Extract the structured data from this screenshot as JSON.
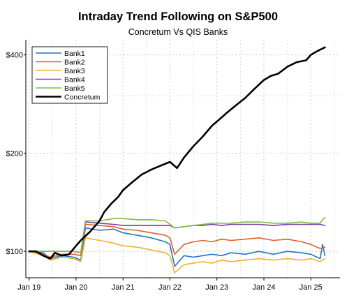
{
  "chart_data": {
    "type": "line",
    "title": "Intraday Trend Following on S&P500",
    "subtitle": "Concretum Vs QIS Banks",
    "xlabel": "",
    "ylabel": "",
    "y_scale": "log",
    "y_ticks": [
      100,
      200,
      400
    ],
    "y_tick_labels": [
      "$100",
      "$200",
      "$400"
    ],
    "ylim": [
      83,
      445
    ],
    "x_ticks": [
      2019.0,
      2020.0,
      2021.0,
      2022.0,
      2023.0,
      2024.0,
      2025.0
    ],
    "x_tick_labels": [
      "Jan 19",
      "Jan 20",
      "Jan 21",
      "Jan 22",
      "Jan 23",
      "Jan 24",
      "Jan 25"
    ],
    "xlim": [
      2018.93,
      2025.62
    ],
    "grid": true,
    "legend_position": "top-left",
    "series": [
      {
        "name": "Bank1",
        "color": "#1f77c4",
        "line_width": 1.6,
        "x": [
          2019.0,
          2019.3,
          2019.45,
          2019.7,
          2019.95,
          2020.1,
          2020.2,
          2020.5,
          2020.8,
          2021.0,
          2021.3,
          2021.6,
          2021.9,
          2022.0,
          2022.1,
          2022.3,
          2022.5,
          2022.7,
          2022.9,
          2023.1,
          2023.3,
          2023.6,
          2023.9,
          2024.2,
          2024.5,
          2024.8,
          2025.0,
          2025.2,
          2025.25,
          2025.3
        ],
        "y": [
          100,
          99,
          95,
          97,
          96,
          94,
          118,
          116,
          117,
          114,
          112,
          110,
          107,
          105,
          90,
          97,
          96,
          97,
          98,
          97,
          99,
          98,
          100,
          98,
          100,
          99,
          98,
          95,
          105,
          97
        ]
      },
      {
        "name": "Bank2",
        "color": "#e0602a",
        "line_width": 1.6,
        "x": [
          2019.0,
          2019.3,
          2019.45,
          2019.7,
          2019.95,
          2020.1,
          2020.2,
          2020.5,
          2020.8,
          2021.0,
          2021.3,
          2021.6,
          2021.9,
          2022.0,
          2022.1,
          2022.3,
          2022.5,
          2022.7,
          2022.9,
          2023.1,
          2023.3,
          2023.6,
          2023.9,
          2024.2,
          2024.5,
          2024.8,
          2025.0,
          2025.2,
          2025.3
        ],
        "y": [
          100,
          98,
          96,
          98,
          98,
          97,
          121,
          120,
          119,
          117,
          116,
          114,
          112,
          110,
          98,
          105,
          107,
          108,
          107,
          109,
          108,
          109,
          110,
          108,
          109,
          107,
          105,
          102,
          103
        ]
      },
      {
        "name": "Bank3",
        "color": "#f0b030",
        "line_width": 1.6,
        "x": [
          2019.0,
          2019.3,
          2019.45,
          2019.7,
          2019.95,
          2020.1,
          2020.2,
          2020.5,
          2020.8,
          2021.0,
          2021.3,
          2021.6,
          2021.9,
          2022.0,
          2022.1,
          2022.3,
          2022.5,
          2022.7,
          2022.9,
          2023.1,
          2023.3,
          2023.6,
          2023.9,
          2024.2,
          2024.5,
          2024.8,
          2025.0,
          2025.2,
          2025.3
        ],
        "y": [
          100,
          97,
          94,
          96,
          95,
          93,
          110,
          108,
          106,
          104,
          103,
          101,
          99,
          97,
          86,
          91,
          92,
          93,
          92,
          94,
          93,
          94,
          95,
          94,
          95,
          94,
          95,
          93,
          95
        ]
      },
      {
        "name": "Bank4",
        "color": "#7a3fa8",
        "line_width": 1.6,
        "x": [
          2019.0,
          2019.3,
          2019.45,
          2019.7,
          2019.95,
          2020.1,
          2020.2,
          2020.5,
          2020.8,
          2021.0,
          2021.3,
          2021.6,
          2021.9,
          2022.0,
          2022.1,
          2022.3,
          2022.5,
          2022.7,
          2022.9,
          2023.1,
          2023.3,
          2023.6,
          2023.9,
          2024.2,
          2024.5,
          2024.8,
          2025.0,
          2025.2,
          2025.3
        ],
        "y": [
          100,
          100,
          100,
          100,
          100,
          99,
          123,
          122,
          121,
          120,
          120,
          120,
          120,
          120,
          118,
          119,
          120,
          120,
          121,
          120,
          121,
          121,
          121,
          120,
          121,
          121,
          121,
          121,
          120
        ]
      },
      {
        "name": "Bank5",
        "color": "#7fbf3f",
        "line_width": 1.6,
        "x": [
          2019.0,
          2019.3,
          2019.45,
          2019.7,
          2019.95,
          2020.1,
          2020.2,
          2020.5,
          2020.8,
          2021.0,
          2021.3,
          2021.6,
          2021.9,
          2022.0,
          2022.1,
          2022.3,
          2022.5,
          2022.7,
          2022.9,
          2023.1,
          2023.3,
          2023.6,
          2023.9,
          2024.2,
          2024.5,
          2024.8,
          2025.0,
          2025.2,
          2025.25,
          2025.3
        ],
        "y": [
          100,
          100,
          100,
          100,
          100,
          99,
          124,
          124,
          126,
          126,
          125,
          125,
          124,
          121,
          118,
          119,
          120,
          121,
          122,
          122,
          122,
          123,
          123,
          122,
          122,
          123,
          122,
          122,
          125,
          127
        ]
      },
      {
        "name": "Concretum",
        "color": "#000000",
        "line_width": 2.6,
        "x": [
          2019.0,
          2019.15,
          2019.3,
          2019.45,
          2019.55,
          2019.7,
          2019.85,
          2020.0,
          2020.1,
          2020.3,
          2020.5,
          2020.6,
          2020.75,
          2020.9,
          2021.0,
          2021.2,
          2021.4,
          2021.6,
          2021.8,
          2022.0,
          2022.15,
          2022.3,
          2022.5,
          2022.7,
          2022.9,
          2023.0,
          2023.2,
          2023.4,
          2023.6,
          2023.8,
          2024.0,
          2024.15,
          2024.3,
          2024.5,
          2024.7,
          2024.9,
          2025.0,
          2025.1,
          2025.2,
          2025.3
        ],
        "y": [
          100,
          100,
          97,
          95,
          99,
          97,
          98,
          104,
          108,
          115,
          124,
          132,
          140,
          147,
          154,
          163,
          172,
          178,
          183,
          188,
          180,
          194,
          210,
          225,
          243,
          250,
          265,
          280,
          295,
          315,
          335,
          345,
          350,
          368,
          380,
          385,
          400,
          408,
          415,
          422
        ]
      }
    ]
  }
}
